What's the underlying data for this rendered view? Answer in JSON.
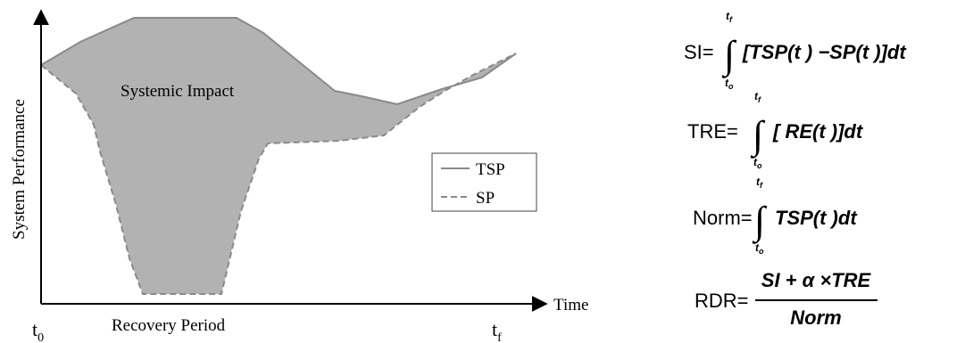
{
  "diagram": {
    "y_axis_label": "System Performance",
    "x_axis_label": "Time",
    "area_label": "Systemic Impact",
    "recovery_label": "Recovery Period",
    "t0_label": "t",
    "t0_sub": "0",
    "tf_label": "t",
    "tf_sub": "f",
    "legend": [
      {
        "label": "TSP",
        "line": "solid"
      },
      {
        "label": "SP",
        "line": "dashed"
      }
    ],
    "colors": {
      "fill": "#b2b2b2",
      "tsp": "#8a8a8a",
      "sp": "#8a8a8a",
      "axis": "#000000"
    }
  },
  "formulas": {
    "si": {
      "lhs": "SI=",
      "upper": "t",
      "upper_sub": "f",
      "lower": "t",
      "lower_sub": "o",
      "body": "[TSP(t ) −SP(t )]dt"
    },
    "tre": {
      "lhs": "TRE=",
      "upper": "t",
      "upper_sub": "f",
      "lower": "t",
      "lower_sub": "o",
      "body": "[ RE(t )]dt"
    },
    "norm": {
      "lhs": "Norm=",
      "upper": "t",
      "upper_sub": "f",
      "lower": "t",
      "lower_sub": "o",
      "body": "TSP(t )dt"
    },
    "rdr": {
      "lhs": "RDR=",
      "numerator": "SI + α ×TRE",
      "denominator": "Norm"
    }
  }
}
